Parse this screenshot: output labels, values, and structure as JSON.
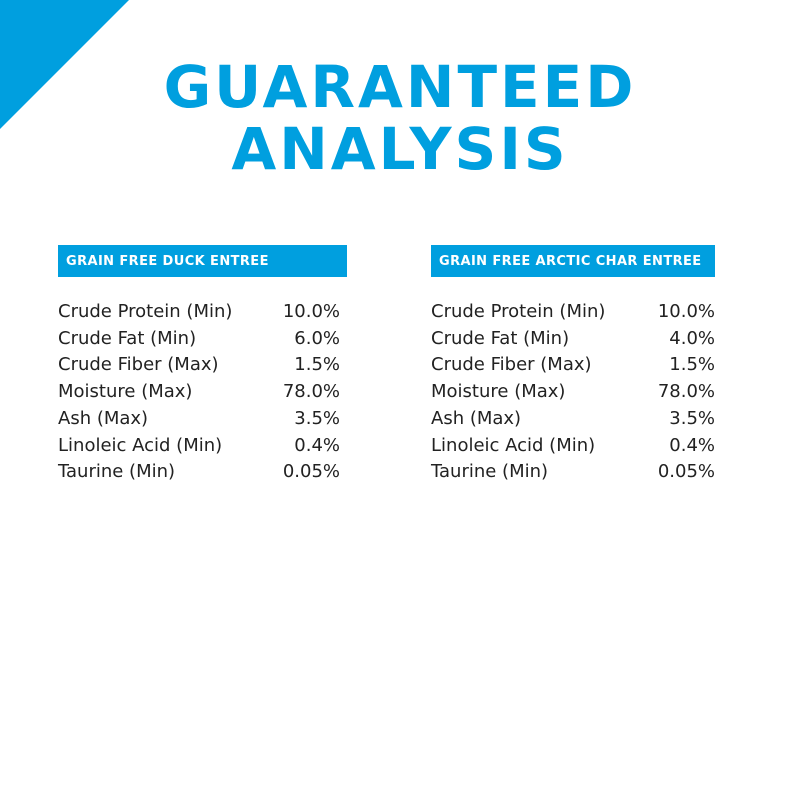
{
  "title": {
    "line1": "GUARANTEED",
    "line2": "ANALYSIS"
  },
  "accent_color": "#009fdf",
  "panels": [
    {
      "heading": "GRAIN FREE DUCK ENTREE",
      "rows": [
        {
          "label": "Crude Protein (Min)",
          "value": "10.0%"
        },
        {
          "label": "Crude Fat (Min)",
          "value": "6.0%"
        },
        {
          "label": "Crude Fiber (Max)",
          "value": "1.5%"
        },
        {
          "label": "Moisture (Max)",
          "value": "78.0%"
        },
        {
          "label": "Ash (Max)",
          "value": "3.5%"
        },
        {
          "label": "Linoleic Acid (Min)",
          "value": "0.4%"
        },
        {
          "label": "Taurine (Min)",
          "value": "0.05%"
        }
      ]
    },
    {
      "heading": "GRAIN FREE ARCTIC CHAR ENTREE",
      "rows": [
        {
          "label": "Crude Protein (Min)",
          "value": "10.0%"
        },
        {
          "label": "Crude Fat (Min)",
          "value": "4.0%"
        },
        {
          "label": "Crude Fiber (Max)",
          "value": "1.5%"
        },
        {
          "label": "Moisture (Max)",
          "value": "78.0%"
        },
        {
          "label": "Ash (Max)",
          "value": "3.5%"
        },
        {
          "label": "Linoleic Acid (Min)",
          "value": "0.4%"
        },
        {
          "label": "Taurine (Min)",
          "value": "0.05%"
        }
      ]
    }
  ]
}
